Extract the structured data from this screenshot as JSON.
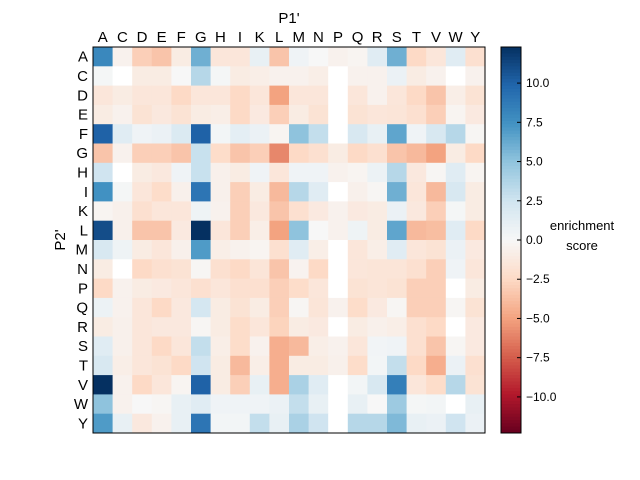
{
  "chart_data": {
    "type": "heatmap",
    "xlabel": "P1'",
    "ylabel": "P2'",
    "colorbar_label": [
      "enrichment",
      "score"
    ],
    "x_categories": [
      "A",
      "C",
      "D",
      "E",
      "F",
      "G",
      "H",
      "I",
      "K",
      "L",
      "M",
      "N",
      "P",
      "Q",
      "R",
      "S",
      "T",
      "V",
      "W",
      "Y"
    ],
    "y_categories": [
      "A",
      "C",
      "D",
      "E",
      "F",
      "G",
      "H",
      "I",
      "K",
      "L",
      "M",
      "N",
      "P",
      "Q",
      "R",
      "S",
      "T",
      "V",
      "W",
      "Y"
    ],
    "colormap": "RdBu",
    "vmin": -12.3,
    "vmax": 12.3,
    "colorbar_ticks": [
      10.0,
      7.5,
      5.0,
      2.5,
      0.0,
      -2.5,
      -5.0,
      -7.5,
      -10.0
    ],
    "colorbar_tick_labels": [
      "10.0",
      "7.5",
      "5.0",
      "2.5",
      "0.0",
      "−2.5",
      "−5.0",
      "−7.5",
      "−10.0"
    ],
    "values": [
      [
        8,
        -0.5,
        -3,
        -3.5,
        -1,
        6,
        -1.5,
        -1.5,
        1,
        -3.5,
        0.5,
        0,
        -0.5,
        -0.3,
        1.5,
        6,
        -2.5,
        -1.5,
        1.5,
        -2
      ],
      [
        0.2,
        null,
        -1,
        -1,
        0,
        3.5,
        0.2,
        -1,
        -0.8,
        -0.5,
        -0.5,
        -0.8,
        null,
        -0.5,
        -0.5,
        0.8,
        -1,
        -0.5,
        null,
        -0.5
      ],
      [
        -1.5,
        -1,
        -1.5,
        -1.5,
        -2.5,
        -1.5,
        -1.5,
        -2.5,
        -1.5,
        -5,
        -1.5,
        -1.5,
        null,
        -1.5,
        -0.5,
        -1.5,
        -2.5,
        -3.5,
        -0.8,
        -1.8
      ],
      [
        -1,
        -0.5,
        -1.8,
        -1.3,
        -1.8,
        -1,
        -0.8,
        -2.5,
        -1.2,
        -3,
        -1,
        -1.8,
        null,
        -1.8,
        -1.5,
        -1.6,
        -2,
        -3,
        -0.3,
        -1.2
      ],
      [
        10,
        1.5,
        0.5,
        0.8,
        1.8,
        10,
        0.3,
        1.2,
        0.8,
        -0.3,
        5,
        3,
        null,
        2,
        1,
        6.5,
        0.5,
        2,
        3.5,
        -0.2
      ],
      [
        -3.5,
        -0.5,
        -3,
        -3,
        -3.5,
        2.8,
        -2.3,
        -3.5,
        -3,
        -6,
        -2.5,
        -2,
        -1,
        -2.5,
        -2,
        -3.5,
        -4,
        -5,
        -1,
        -2.5
      ],
      [
        2.5,
        null,
        -1,
        -1.3,
        0.5,
        2.8,
        -0.6,
        -1,
        0.5,
        -1.5,
        0.5,
        0.5,
        -0.5,
        -0.3,
        0.7,
        3.5,
        -1.3,
        -0.2,
        1.5,
        -0.3
      ],
      [
        7.5,
        0.2,
        -1.5,
        -2.3,
        -0.6,
        9,
        -0.6,
        -3,
        -1,
        -4,
        3.5,
        1.5,
        null,
        -0.6,
        -0.2,
        6,
        -1.5,
        -4,
        2,
        -1
      ],
      [
        -0.3,
        -0.6,
        -2,
        -1.5,
        -1.5,
        0.6,
        -0.5,
        -3,
        -1.3,
        -3.5,
        -2,
        -1.2,
        -0.5,
        -1.2,
        -1,
        0.8,
        -1.3,
        -3,
        0.2,
        -1
      ],
      [
        11,
        -0.6,
        -3.5,
        -3.5,
        -1.2,
        12.3,
        -1.5,
        -3,
        -0.8,
        -5,
        5,
        0,
        -0.5,
        0.6,
        -1,
        6.5,
        -4,
        -3.8,
        1.5,
        -2.5
      ],
      [
        2,
        0.6,
        -1,
        -1.5,
        -0.6,
        7,
        -0.8,
        -0.5,
        -0.3,
        -2,
        1.5,
        -0.8,
        null,
        -1.5,
        -0.8,
        1.5,
        -1.5,
        -1.8,
        0.8,
        -1.2
      ],
      [
        -1,
        null,
        -2.5,
        -2,
        -1.8,
        -0.2,
        -2,
        -2.5,
        -1.6,
        -3.5,
        -0.4,
        -2.5,
        null,
        -1.5,
        -1.6,
        -1.6,
        -2,
        -3,
        0.5,
        -1.5
      ],
      [
        -2.5,
        -0.5,
        -1,
        -1.2,
        -1.5,
        -2,
        -1.5,
        -2,
        -2,
        -3,
        -2.3,
        -1.5,
        null,
        -1.8,
        -1.6,
        -1.8,
        -3,
        -3,
        null,
        -1
      ],
      [
        0.7,
        -0.5,
        -1.5,
        -2.5,
        -1.3,
        2.2,
        -1,
        -1.8,
        -1,
        -3,
        -0.2,
        -1.6,
        -0.5,
        -2.3,
        -1.2,
        -0.2,
        -3,
        -3,
        -0.2,
        -1.8
      ],
      [
        -1,
        -0.6,
        -1.5,
        -1.3,
        -1.3,
        -0.2,
        -1,
        -2.3,
        -1.5,
        -2.8,
        -1,
        -1.2,
        null,
        -1,
        -0.6,
        -0.8,
        -2,
        -2.5,
        null,
        -1.2
      ],
      [
        1.5,
        -0.6,
        -1.5,
        -2.5,
        -1.5,
        3,
        -0.8,
        -2.3,
        -0.5,
        -4.5,
        -4,
        -0.8,
        -0.5,
        -1.5,
        0.4,
        0.5,
        -2,
        -3.5,
        -0.2,
        -1.2
      ],
      [
        2,
        -0.8,
        -1.5,
        -1.8,
        -2.5,
        2.5,
        -1,
        -4,
        -0.8,
        -4.5,
        -1,
        -1,
        -0.6,
        -2.3,
        0.3,
        3,
        -2.5,
        -4.5,
        0.8,
        -2
      ],
      [
        12.3,
        -0.5,
        -2.5,
        -1.5,
        -0.3,
        10,
        -1,
        -3,
        1,
        -4.5,
        4,
        1.5,
        null,
        0.3,
        2,
        8.5,
        -1.5,
        -2.3,
        3.5,
        -1.8
      ],
      [
        5,
        -0.5,
        0,
        -0.2,
        1,
        1.5,
        0.5,
        0.5,
        0.5,
        0.8,
        3,
        1,
        null,
        1,
        0,
        4.5,
        0.2,
        0.3,
        null,
        1
      ],
      [
        7,
        1,
        -1.3,
        -0.5,
        1,
        9,
        0.3,
        0.3,
        3,
        1,
        4,
        2.5,
        null,
        3.5,
        3.5,
        5.5,
        1,
        0.8,
        2.5,
        0.8
      ]
    ]
  }
}
